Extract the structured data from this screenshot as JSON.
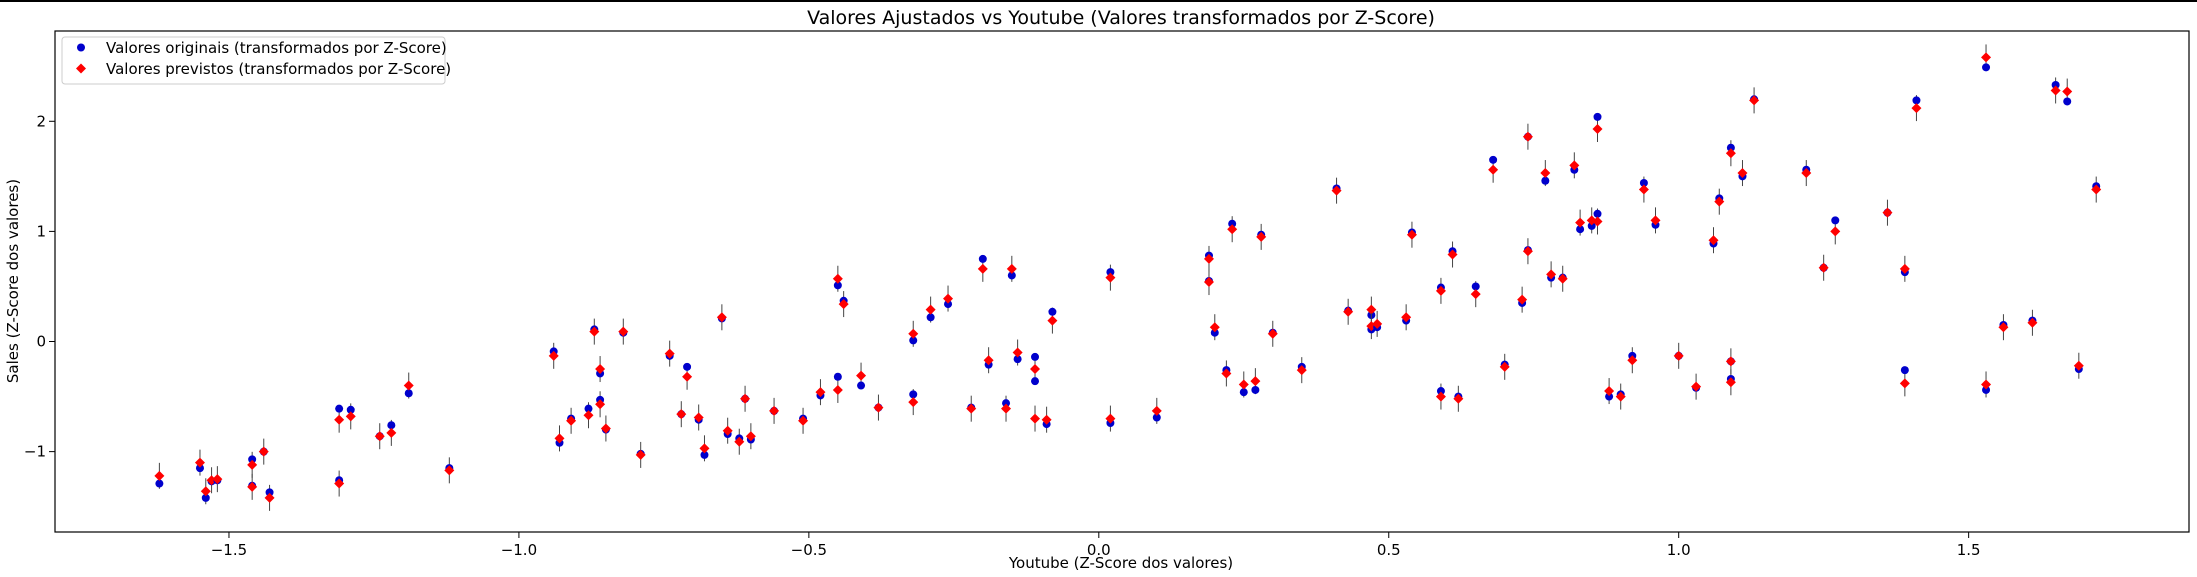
{
  "chart_data": {
    "type": "scatter",
    "title": "Valores Ajustados vs Youtube (Valores transformados por Z-Score)",
    "xlabel": "Youtube (Z-Score dos valores)",
    "ylabel": "Sales (Z-Score dos valores)",
    "xlim": [
      -1.8,
      1.88
    ],
    "ylim": [
      -1.73,
      2.82
    ],
    "xticks": [
      -1.5,
      -1.0,
      -0.5,
      0.0,
      0.5,
      1.0,
      1.5
    ],
    "xtick_labels": [
      "−1.5",
      "−1.0",
      "−0.5",
      "0.0",
      "0.5",
      "1.0",
      "1.5"
    ],
    "yticks": [
      -1,
      0,
      1,
      2
    ],
    "ytick_labels": [
      "−1",
      "0",
      "1",
      "2"
    ],
    "grid": false,
    "legend_position": "top-left",
    "series": [
      {
        "name": "Valores originais (transformados por Z-Score)",
        "color": "#0000cc",
        "marker": "circle"
      },
      {
        "name": "Valores previstos (transformados por Z-Score)",
        "color": "#ff0000",
        "marker": "diamond"
      }
    ],
    "points": [
      [
        -1.62,
        -1.29,
        -1.22
      ],
      [
        -1.55,
        -1.15,
        -1.1
      ],
      [
        -1.54,
        -1.42,
        -1.36
      ],
      [
        -1.53,
        -1.27,
        -1.26
      ],
      [
        -1.52,
        -1.26,
        -1.25
      ],
      [
        -1.46,
        -1.07,
        -1.12
      ],
      [
        -1.46,
        -1.31,
        -1.32
      ],
      [
        -1.44,
        -1.0,
        -1.0
      ],
      [
        -1.43,
        -1.37,
        -1.42
      ],
      [
        -1.31,
        -0.61,
        -0.71
      ],
      [
        -1.31,
        -1.26,
        -1.29
      ],
      [
        -1.29,
        -0.62,
        -0.68
      ],
      [
        -1.24,
        -0.86,
        -0.86
      ],
      [
        -1.22,
        -0.76,
        -0.83
      ],
      [
        -1.19,
        -0.47,
        -0.4
      ],
      [
        -1.12,
        -1.15,
        -1.17
      ],
      [
        -0.94,
        -0.09,
        -0.13
      ],
      [
        -0.93,
        -0.92,
        -0.88
      ],
      [
        -0.91,
        -0.7,
        -0.72
      ],
      [
        -0.88,
        -0.61,
        -0.67
      ],
      [
        -0.87,
        0.11,
        0.09
      ],
      [
        -0.86,
        -0.29,
        -0.25
      ],
      [
        -0.86,
        -0.53,
        -0.57
      ],
      [
        -0.85,
        -0.8,
        -0.79
      ],
      [
        -0.82,
        0.08,
        0.09
      ],
      [
        -0.79,
        -1.02,
        -1.03
      ],
      [
        -0.74,
        -0.13,
        -0.11
      ],
      [
        -0.72,
        -0.66,
        -0.66
      ],
      [
        -0.71,
        -0.23,
        -0.32
      ],
      [
        -0.69,
        -0.71,
        -0.69
      ],
      [
        -0.68,
        -1.03,
        -0.97
      ],
      [
        -0.65,
        0.21,
        0.22
      ],
      [
        -0.64,
        -0.84,
        -0.81
      ],
      [
        -0.62,
        -0.88,
        -0.91
      ],
      [
        -0.61,
        -0.52,
        -0.52
      ],
      [
        -0.6,
        -0.89,
        -0.86
      ],
      [
        -0.56,
        -0.63,
        -0.63
      ],
      [
        -0.51,
        -0.7,
        -0.72
      ],
      [
        -0.48,
        -0.49,
        -0.46
      ],
      [
        -0.45,
        0.51,
        0.57
      ],
      [
        -0.45,
        -0.32,
        -0.44
      ],
      [
        -0.44,
        0.37,
        0.34
      ],
      [
        -0.41,
        -0.4,
        -0.31
      ],
      [
        -0.38,
        -0.6,
        -0.6
      ],
      [
        -0.32,
        0.01,
        0.07
      ],
      [
        -0.32,
        -0.48,
        -0.55
      ],
      [
        -0.29,
        0.22,
        0.29
      ],
      [
        -0.26,
        0.34,
        0.39
      ],
      [
        -0.22,
        -0.6,
        -0.61
      ],
      [
        -0.2,
        0.75,
        0.66
      ],
      [
        -0.19,
        -0.21,
        -0.17
      ],
      [
        -0.16,
        -0.56,
        -0.61
      ],
      [
        -0.15,
        0.6,
        0.66
      ],
      [
        -0.14,
        -0.16,
        -0.1
      ],
      [
        -0.11,
        -0.14,
        -0.25
      ],
      [
        -0.11,
        -0.36,
        -0.7
      ],
      [
        -0.09,
        -0.75,
        -0.71
      ],
      [
        -0.08,
        0.27,
        0.19
      ],
      [
        0.02,
        0.63,
        0.58
      ],
      [
        0.02,
        -0.74,
        -0.7
      ],
      [
        0.1,
        -0.69,
        -0.63
      ],
      [
        0.19,
        0.78,
        0.75
      ],
      [
        0.19,
        0.55,
        0.54
      ],
      [
        0.2,
        0.08,
        0.13
      ],
      [
        0.22,
        -0.26,
        -0.29
      ],
      [
        0.23,
        1.07,
        1.02
      ],
      [
        0.25,
        -0.46,
        -0.39
      ],
      [
        0.27,
        -0.44,
        -0.36
      ],
      [
        0.28,
        0.97,
        0.95
      ],
      [
        0.3,
        0.08,
        0.07
      ],
      [
        0.35,
        -0.23,
        -0.26
      ],
      [
        0.41,
        1.39,
        1.37
      ],
      [
        0.43,
        0.28,
        0.27
      ],
      [
        0.47,
        0.24,
        0.29
      ],
      [
        0.47,
        0.11,
        0.14
      ],
      [
        0.48,
        0.13,
        0.16
      ],
      [
        0.53,
        0.19,
        0.22
      ],
      [
        0.54,
        0.99,
        0.97
      ],
      [
        0.59,
        0.49,
        0.46
      ],
      [
        0.59,
        -0.45,
        -0.5
      ],
      [
        0.61,
        0.82,
        0.79
      ],
      [
        0.62,
        -0.5,
        -0.52
      ],
      [
        0.65,
        0.5,
        0.43
      ],
      [
        0.68,
        1.65,
        1.56
      ],
      [
        0.7,
        -0.21,
        -0.23
      ],
      [
        0.73,
        0.35,
        0.38
      ],
      [
        0.74,
        0.83,
        0.82
      ],
      [
        0.74,
        1.86,
        1.86
      ],
      [
        0.77,
        1.46,
        1.53
      ],
      [
        0.78,
        0.58,
        0.61
      ],
      [
        0.8,
        0.58,
        0.57
      ],
      [
        0.82,
        1.56,
        1.6
      ],
      [
        0.83,
        1.02,
        1.08
      ],
      [
        0.85,
        1.05,
        1.1
      ],
      [
        0.86,
        2.04,
        1.93
      ],
      [
        0.86,
        1.16,
        1.09
      ],
      [
        0.88,
        -0.5,
        -0.45
      ],
      [
        0.9,
        -0.48,
        -0.5
      ],
      [
        0.92,
        -0.13,
        -0.17
      ],
      [
        0.94,
        1.44,
        1.38
      ],
      [
        0.96,
        1.06,
        1.1
      ],
      [
        1.0,
        -0.13,
        -0.13
      ],
      [
        1.03,
        -0.42,
        -0.41
      ],
      [
        1.06,
        0.89,
        0.92
      ],
      [
        1.07,
        1.3,
        1.27
      ],
      [
        1.09,
        -0.34,
        -0.37
      ],
      [
        1.09,
        -0.18,
        -0.18
      ],
      [
        1.09,
        1.76,
        1.71
      ],
      [
        1.11,
        1.5,
        1.53
      ],
      [
        1.13,
        2.2,
        2.19
      ],
      [
        1.22,
        1.56,
        1.53
      ],
      [
        1.25,
        0.67,
        0.67
      ],
      [
        1.27,
        1.1,
        1.0
      ],
      [
        1.36,
        1.17,
        1.17
      ],
      [
        1.39,
        -0.26,
        -0.38
      ],
      [
        1.39,
        0.63,
        0.66
      ],
      [
        1.41,
        2.19,
        2.12
      ],
      [
        1.53,
        -0.44,
        -0.39
      ],
      [
        1.53,
        2.49,
        2.58
      ],
      [
        1.56,
        0.15,
        0.13
      ],
      [
        1.61,
        0.19,
        0.17
      ],
      [
        1.65,
        2.33,
        2.28
      ],
      [
        1.67,
        2.18,
        2.27
      ],
      [
        1.69,
        -0.25,
        -0.22
      ],
      [
        1.72,
        1.41,
        1.38
      ]
    ]
  }
}
